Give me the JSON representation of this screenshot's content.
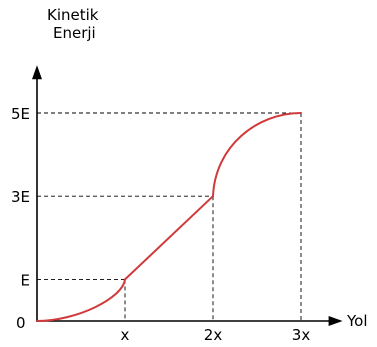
{
  "chart_data": {
    "type": "line",
    "ylabel": [
      "Kinetik",
      "Enerji"
    ],
    "xlabel": "Yol",
    "origin_label": "0",
    "x_ticks": [
      {
        "value": 1,
        "label": "x"
      },
      {
        "value": 2,
        "label": "2x"
      },
      {
        "value": 3,
        "label": "3x"
      }
    ],
    "y_ticks": [
      {
        "value": 1,
        "label": "E"
      },
      {
        "value": 3,
        "label": "3E"
      },
      {
        "value": 5,
        "label": "5E"
      }
    ],
    "xlim": [
      0,
      3.45
    ],
    "ylim": [
      0,
      6.1
    ],
    "grid": false,
    "series_color": "#d03a3a",
    "series": [
      {
        "segments": [
          {
            "from": [
              0,
              0
            ],
            "to": [
              1,
              1
            ],
            "shape": "concave-up"
          },
          {
            "from": [
              1,
              1
            ],
            "to": [
              2,
              3
            ],
            "shape": "straight"
          },
          {
            "from": [
              2,
              3
            ],
            "to": [
              3,
              5
            ],
            "shape": "concave-down"
          }
        ]
      }
    ]
  }
}
